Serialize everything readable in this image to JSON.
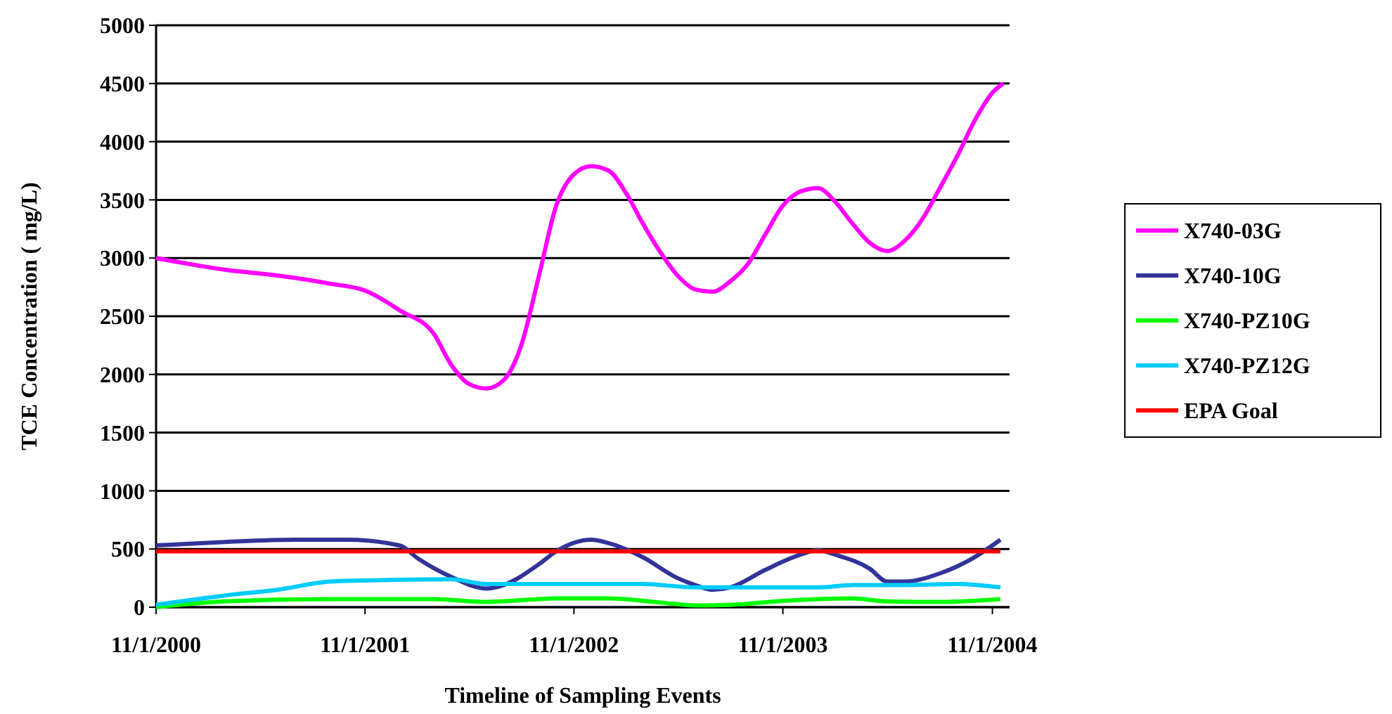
{
  "chart_data": {
    "type": "line",
    "xlabel": "Timeline of Sampling Events",
    "ylabel": "TCE Concentration ( mg/L)",
    "xlim": [
      "2000-11-01",
      "2004-12-01"
    ],
    "xticks": [
      {
        "value": "2000-11-01",
        "label": "11/1/2000"
      },
      {
        "value": "2001-11-01",
        "label": "11/1/2001"
      },
      {
        "value": "2002-11-01",
        "label": "11/1/2002"
      },
      {
        "value": "2003-11-01",
        "label": "11/1/2003"
      },
      {
        "value": "2004-11-01",
        "label": "11/1/2004"
      }
    ],
    "ylim": [
      0,
      5000
    ],
    "yticks": [
      0,
      500,
      1000,
      1500,
      2000,
      2500,
      3000,
      3500,
      4000,
      4500,
      5000
    ],
    "grid": "y",
    "legend": "right",
    "series": [
      {
        "name": "X740-03G",
        "color": "#ff00ff",
        "x": [
          "2000-11-01",
          "2001-03-01",
          "2001-06-01",
          "2001-09-01",
          "2001-11-01",
          "2002-01-01",
          "2002-03-01",
          "2002-04-01",
          "2002-05-01",
          "2002-06-01",
          "2002-07-01",
          "2002-08-01",
          "2002-09-01",
          "2002-10-01",
          "2002-11-01",
          "2002-12-01",
          "2003-01-01",
          "2003-02-01",
          "2003-03-01",
          "2003-04-01",
          "2003-05-01",
          "2003-06-01",
          "2003-07-01",
          "2003-08-01",
          "2003-09-01",
          "2003-10-01",
          "2003-11-01",
          "2003-12-01",
          "2004-01-01",
          "2004-02-01",
          "2004-03-01",
          "2004-04-01",
          "2004-05-01",
          "2004-06-01",
          "2004-07-01",
          "2004-08-01",
          "2004-09-01",
          "2004-10-01",
          "2004-11-01",
          "2004-11-20"
        ],
        "values": [
          3000,
          2900,
          2850,
          2780,
          2720,
          2550,
          2350,
          2080,
          1920,
          1880,
          1950,
          2250,
          2850,
          3450,
          3720,
          3790,
          3750,
          3550,
          3300,
          3050,
          2850,
          2730,
          2710,
          2800,
          2950,
          3200,
          3450,
          3570,
          3600,
          3480,
          3300,
          3130,
          3060,
          3150,
          3330,
          3600,
          3880,
          4180,
          4420,
          4500
        ]
      },
      {
        "name": "X740-10G",
        "color": "#333399",
        "x": [
          "2000-11-01",
          "2001-03-01",
          "2001-07-01",
          "2001-10-01",
          "2002-01-01",
          "2002-02-01",
          "2002-04-01",
          "2002-06-01",
          "2002-07-01",
          "2002-09-01",
          "2002-10-01",
          "2002-12-01",
          "2003-01-01",
          "2003-03-01",
          "2003-05-01",
          "2003-06-01",
          "2003-07-01",
          "2003-08-01",
          "2003-10-01",
          "2003-12-01",
          "2004-01-01",
          "2004-02-01",
          "2004-04-01",
          "2004-05-01",
          "2004-06-01",
          "2004-08-01",
          "2004-10-01",
          "2004-11-15"
        ],
        "values": [
          530,
          560,
          580,
          580,
          530,
          420,
          260,
          160,
          190,
          370,
          480,
          580,
          550,
          430,
          250,
          190,
          150,
          170,
          320,
          450,
          490,
          450,
          330,
          220,
          220,
          290,
          430,
          580
        ]
      },
      {
        "name": "X740-PZ10G",
        "color": "#00ff00",
        "x": [
          "2000-11-01",
          "2001-03-01",
          "2001-09-01",
          "2002-03-01",
          "2002-06-01",
          "2002-08-01",
          "2002-10-01",
          "2003-01-01",
          "2003-04-01",
          "2003-06-01",
          "2003-08-01",
          "2003-11-01",
          "2004-01-01",
          "2004-03-01",
          "2004-05-01",
          "2004-08-01",
          "2004-11-15"
        ],
        "values": [
          0,
          50,
          70,
          70,
          45,
          60,
          75,
          75,
          40,
          15,
          20,
          55,
          70,
          75,
          50,
          45,
          70
        ]
      },
      {
        "name": "X740-PZ12G",
        "color": "#00ccff",
        "x": [
          "2000-11-01",
          "2001-03-01",
          "2001-06-01",
          "2001-09-01",
          "2001-11-01",
          "2002-04-01",
          "2002-06-01",
          "2002-10-01",
          "2003-03-01",
          "2003-06-01",
          "2003-08-01",
          "2004-01-01",
          "2004-03-01",
          "2004-06-01",
          "2004-09-01",
          "2004-11-15"
        ],
        "values": [
          20,
          100,
          150,
          220,
          230,
          240,
          200,
          200,
          200,
          170,
          170,
          170,
          190,
          190,
          200,
          170
        ]
      },
      {
        "name": "EPA Goal",
        "color": "#ff0000",
        "x": [
          "2000-11-01",
          "2004-11-15"
        ],
        "values": [
          480,
          480
        ]
      }
    ]
  }
}
